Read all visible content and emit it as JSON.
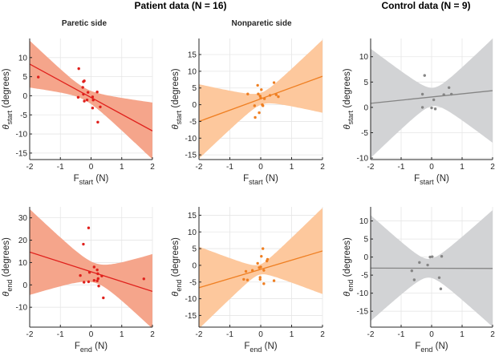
{
  "titles": {
    "patient": "Patient data (N = 16)",
    "control": "Control data (N = 9)"
  },
  "subtitles": {
    "paretic": "Paretic side",
    "nonparetic": "Nonparetic side"
  },
  "colors": {
    "red_line": "#e0201c",
    "red_fill": "#f5a58b",
    "orange_line": "#ef7f22",
    "orange_fill": "#fdc89d",
    "gray_line": "#858585",
    "gray_fill": "#d2d3d5",
    "grid": "#e6e6e6",
    "axis": "#262626"
  },
  "chart_data": [
    {
      "id": "p1",
      "type": "scatter",
      "ylabel_sym": "θ",
      "ylabel_sub": "start",
      "ylabel_unit": "(degrees)",
      "xlabel_sym": "F",
      "xlabel_sub": "start",
      "xlabel_unit": "(N)",
      "xlim": [
        -2,
        2
      ],
      "ylim": [
        -16.7,
        15
      ],
      "xticks": [
        -2,
        -1,
        0,
        1,
        2
      ],
      "yticks": [
        -15,
        -10,
        -5,
        0,
        5,
        10
      ],
      "color": "red",
      "fit": {
        "slope": -4.375,
        "intercept": -0.45
      },
      "ci": {
        "x0": -0.2,
        "h0": 1.6,
        "k": 3.3
      },
      "points": [
        [
          -1.72,
          4.9
        ],
        [
          -0.4,
          7.1
        ],
        [
          -0.42,
          -0.4
        ],
        [
          -0.27,
          2.2
        ],
        [
          -0.25,
          3.7
        ],
        [
          -0.22,
          3.9
        ],
        [
          -0.25,
          0.4
        ],
        [
          -0.22,
          -1.4
        ],
        [
          -0.13,
          -1.1
        ],
        [
          -0.1,
          0.9
        ],
        [
          0.05,
          -0.3
        ],
        [
          0.07,
          -1.1
        ],
        [
          0.05,
          -3.2
        ],
        [
          0.2,
          1.0
        ],
        [
          0.3,
          -2.9
        ],
        [
          0.22,
          -6.9
        ]
      ]
    },
    {
      "id": "p2",
      "type": "scatter",
      "ylabel_sym": "θ",
      "ylabel_sub": "start",
      "ylabel_unit": "(degrees)",
      "xlabel_sym": "F",
      "xlabel_sub": "start",
      "xlabel_unit": "(N)",
      "xlim": [
        -2,
        2
      ],
      "ylim": [
        -16.4,
        19.8
      ],
      "xticks": [
        -2,
        -1,
        0,
        1,
        2
      ],
      "yticks": [
        -15,
        -10,
        -5,
        0,
        5,
        10,
        15
      ],
      "color": "orange",
      "fit": {
        "slope": 3.375,
        "intercept": 1.75
      },
      "ci": {
        "x0": 0.02,
        "h0": 1.8,
        "k": 5.43
      },
      "points": [
        [
          -0.42,
          3.2
        ],
        [
          -0.2,
          -0.3
        ],
        [
          -0.18,
          -3.8
        ],
        [
          -0.1,
          5.8
        ],
        [
          -0.08,
          3.2
        ],
        [
          -0.05,
          -2.4
        ],
        [
          -0.02,
          2.6
        ],
        [
          0.0,
          2.0
        ],
        [
          0.02,
          4.5
        ],
        [
          0.05,
          0.0
        ],
        [
          0.07,
          -0.3
        ],
        [
          0.12,
          1.8
        ],
        [
          0.3,
          2.8
        ],
        [
          0.43,
          6.6
        ],
        [
          0.5,
          3.0
        ],
        [
          0.57,
          2.4
        ]
      ]
    },
    {
      "id": "p3",
      "type": "scatter",
      "ylabel_sym": "θ",
      "ylabel_sub": "start",
      "ylabel_unit": "(degrees)",
      "xlabel_sym": "F",
      "xlabel_sub": "start",
      "xlabel_unit": "(N)",
      "xlim": [
        -2,
        2
      ],
      "ylim": [
        -10.3,
        13.6
      ],
      "xticks": [
        -2,
        -1,
        0,
        1,
        2
      ],
      "yticks": [
        -10,
        -5,
        0,
        5,
        10
      ],
      "color": "gray",
      "fit": {
        "slope": 0.625,
        "intercept": 2.05
      },
      "ci": {
        "x0": 0.05,
        "h0": 1.8,
        "k": 5.19
      },
      "points": [
        [
          -0.3,
          2.6
        ],
        [
          -0.3,
          0.0
        ],
        [
          -0.23,
          6.3
        ],
        [
          0.0,
          -0.1
        ],
        [
          0.07,
          1.5
        ],
        [
          0.12,
          -0.3
        ],
        [
          0.4,
          2.5
        ],
        [
          0.57,
          3.9
        ],
        [
          0.65,
          2.6
        ]
      ]
    },
    {
      "id": "p4",
      "type": "scatter",
      "ylabel_sym": "θ",
      "ylabel_sub": "end",
      "ylabel_unit": "(degrees)",
      "xlabel_sym": "F",
      "xlabel_sub": "end",
      "xlabel_unit": "(N)",
      "xlim": [
        -2,
        2
      ],
      "ylim": [
        -18.9,
        34.9
      ],
      "xticks": [
        -2,
        -1,
        0,
        1,
        2
      ],
      "yticks": [
        -10,
        0,
        10,
        20,
        30
      ],
      "color": "red",
      "fit": {
        "slope": -4.4,
        "intercept": 5.9
      },
      "ci": {
        "x0": 0.15,
        "h0": 4.4,
        "k": 8.7
      },
      "points": [
        [
          -0.35,
          4.2
        ],
        [
          -0.25,
          18.2
        ],
        [
          -0.23,
          1.2
        ],
        [
          -0.08,
          25.5
        ],
        [
          -0.08,
          1.4
        ],
        [
          -0.05,
          5.6
        ],
        [
          0.1,
          2.0
        ],
        [
          0.1,
          8.0
        ],
        [
          0.2,
          6.7
        ],
        [
          0.2,
          1.8
        ],
        [
          0.23,
          2.8
        ],
        [
          0.22,
          5.0
        ],
        [
          0.25,
          -0.5
        ],
        [
          0.35,
          4.0
        ],
        [
          0.4,
          -5.8
        ],
        [
          1.72,
          2.7
        ]
      ]
    },
    {
      "id": "p5",
      "type": "scatter",
      "ylabel_sym": "θ",
      "ylabel_sub": "end",
      "ylabel_unit": "(degrees)",
      "xlabel_sym": "F",
      "xlabel_sub": "end",
      "xlabel_unit": "(N)",
      "xlim": [
        -2,
        2
      ],
      "ylim": [
        -18.5,
        17.5
      ],
      "xticks": [
        -2,
        -1,
        0,
        1,
        2
      ],
      "yticks": [
        -15,
        -10,
        -5,
        0,
        5,
        10,
        15
      ],
      "color": "orange",
      "fit": {
        "slope": 2.75,
        "intercept": -1.2
      },
      "ci": {
        "x0": -0.05,
        "h0": 1.5,
        "k": 6.25
      },
      "points": [
        [
          -0.55,
          -4.2
        ],
        [
          -0.48,
          -1.8
        ],
        [
          -0.43,
          -4.4
        ],
        [
          -0.27,
          -1.5
        ],
        [
          -0.1,
          0.6
        ],
        [
          -0.05,
          -0.7
        ],
        [
          -0.02,
          -4.2
        ],
        [
          -0.02,
          -3.6
        ],
        [
          0.0,
          -0.5
        ],
        [
          0.02,
          2.7
        ],
        [
          0.07,
          5.0
        ],
        [
          0.1,
          -1.5
        ],
        [
          0.1,
          -5.5
        ],
        [
          0.2,
          1.3
        ],
        [
          0.22,
          1.8
        ],
        [
          0.43,
          -4.6
        ]
      ]
    },
    {
      "id": "p6",
      "type": "scatter",
      "ylabel_sym": "θ",
      "ylabel_sub": "end",
      "ylabel_unit": "(degrees)",
      "xlabel_sym": "F",
      "xlabel_sub": "end",
      "xlabel_unit": "(N)",
      "xlim": [
        -2,
        2
      ],
      "ylim": [
        -19.4,
        13.9
      ],
      "xticks": [
        -2,
        -1,
        0,
        1,
        2
      ],
      "yticks": [
        -15,
        -10,
        -5,
        0,
        5,
        10
      ],
      "color": "gray",
      "fit": {
        "slope": -0.025,
        "intercept": -3.1
      },
      "ci": {
        "x0": -0.1,
        "h0": 2.6,
        "k": 7.59
      },
      "points": [
        [
          -0.65,
          -3.8
        ],
        [
          -0.57,
          -6.3
        ],
        [
          -0.4,
          -1.5
        ],
        [
          -0.13,
          -2.2
        ],
        [
          -0.05,
          0.0
        ],
        [
          0.02,
          0.1
        ],
        [
          0.25,
          -5.7
        ],
        [
          0.3,
          -8.8
        ],
        [
          0.33,
          0.2
        ]
      ]
    }
  ]
}
